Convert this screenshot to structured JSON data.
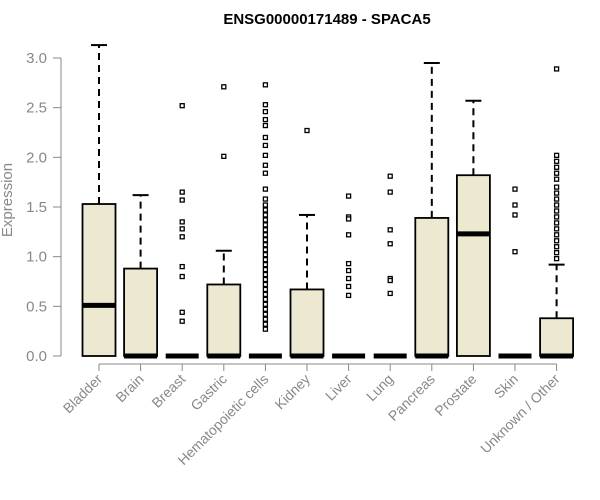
{
  "chart_data": {
    "type": "boxplot",
    "title": "ENSG00000171489 - SPACA5",
    "xlabel": "",
    "ylabel": "Expression",
    "ylim": [
      0,
      3.1
    ],
    "yticks": [
      "0.0",
      "0.5",
      "1.0",
      "1.5",
      "2.0",
      "2.5",
      "3.0"
    ],
    "grid": false,
    "box_color": "#ede8d0",
    "line_color": "#000000",
    "categories": [
      "Bladder",
      "Brain",
      "Breast",
      "Gastric",
      "Hematopoietic cells",
      "Kidney",
      "Liver",
      "Lung",
      "Pancreas",
      "Prostate",
      "Skin",
      "Unknown / Other"
    ],
    "series": [
      {
        "name": "Bladder",
        "min": 0.0,
        "q1": 0.0,
        "median": 0.51,
        "q3": 1.53,
        "max": 3.13,
        "outliers": []
      },
      {
        "name": "Brain",
        "min": 0.0,
        "q1": 0.0,
        "median": 0.0,
        "q3": 0.88,
        "max": 1.62,
        "outliers": []
      },
      {
        "name": "Breast",
        "min": 0.0,
        "q1": 0.0,
        "median": 0.0,
        "q3": 0.0,
        "max": 0.0,
        "outliers": [
          2.52,
          1.65,
          1.57,
          1.35,
          1.28,
          1.2,
          0.9,
          0.8,
          0.44,
          0.35
        ]
      },
      {
        "name": "Gastric",
        "min": 0.0,
        "q1": 0.0,
        "median": 0.0,
        "q3": 0.72,
        "max": 1.06,
        "outliers": [
          2.71,
          2.01
        ]
      },
      {
        "name": "Hematopoietic cells",
        "min": 0.0,
        "q1": 0.0,
        "median": 0.0,
        "q3": 0.0,
        "max": 0.0,
        "outliers": [
          2.73,
          2.53,
          2.46,
          2.38,
          2.32,
          2.2,
          2.12,
          2.02,
          1.92,
          1.84,
          1.68,
          1.58,
          1.52,
          1.47,
          1.42,
          1.37,
          1.32,
          1.27,
          1.22,
          1.17,
          1.12,
          1.07,
          1.02,
          0.97,
          0.92,
          0.87,
          0.82,
          0.77,
          0.72,
          0.67,
          0.62,
          0.57,
          0.52,
          0.47,
          0.42,
          0.37,
          0.32,
          0.27
        ]
      },
      {
        "name": "Kidney",
        "min": 0.0,
        "q1": 0.0,
        "median": 0.0,
        "q3": 0.67,
        "max": 1.42,
        "outliers": [
          2.27
        ]
      },
      {
        "name": "Liver",
        "min": 0.0,
        "q1": 0.0,
        "median": 0.0,
        "q3": 0.0,
        "max": 0.0,
        "outliers": [
          1.61,
          1.4,
          1.38,
          1.22,
          0.93,
          0.86,
          0.78,
          0.7,
          0.61
        ]
      },
      {
        "name": "Lung",
        "min": 0.0,
        "q1": 0.0,
        "median": 0.0,
        "q3": 0.0,
        "max": 0.0,
        "outliers": [
          1.81,
          1.65,
          1.27,
          1.13,
          0.78,
          0.76,
          0.63
        ]
      },
      {
        "name": "Pancreas",
        "min": 0.0,
        "q1": 0.0,
        "median": 0.0,
        "q3": 1.39,
        "max": 2.95,
        "outliers": []
      },
      {
        "name": "Prostate",
        "min": 0.0,
        "q1": 0.0,
        "median": 1.23,
        "q3": 1.82,
        "max": 2.57,
        "outliers": []
      },
      {
        "name": "Skin",
        "min": 0.0,
        "q1": 0.0,
        "median": 0.0,
        "q3": 0.0,
        "max": 0.0,
        "outliers": [
          1.68,
          1.52,
          1.42,
          1.05
        ]
      },
      {
        "name": "Unknown / Other",
        "min": 0.0,
        "q1": 0.0,
        "median": 0.0,
        "q3": 0.38,
        "max": 0.92,
        "outliers": [
          2.89,
          2.02,
          1.96,
          1.9,
          1.84,
          1.78,
          1.7,
          1.64,
          1.58,
          1.52,
          1.46,
          1.4,
          1.34,
          1.28,
          1.22,
          1.16,
          1.1,
          1.04,
          0.98
        ]
      }
    ]
  }
}
